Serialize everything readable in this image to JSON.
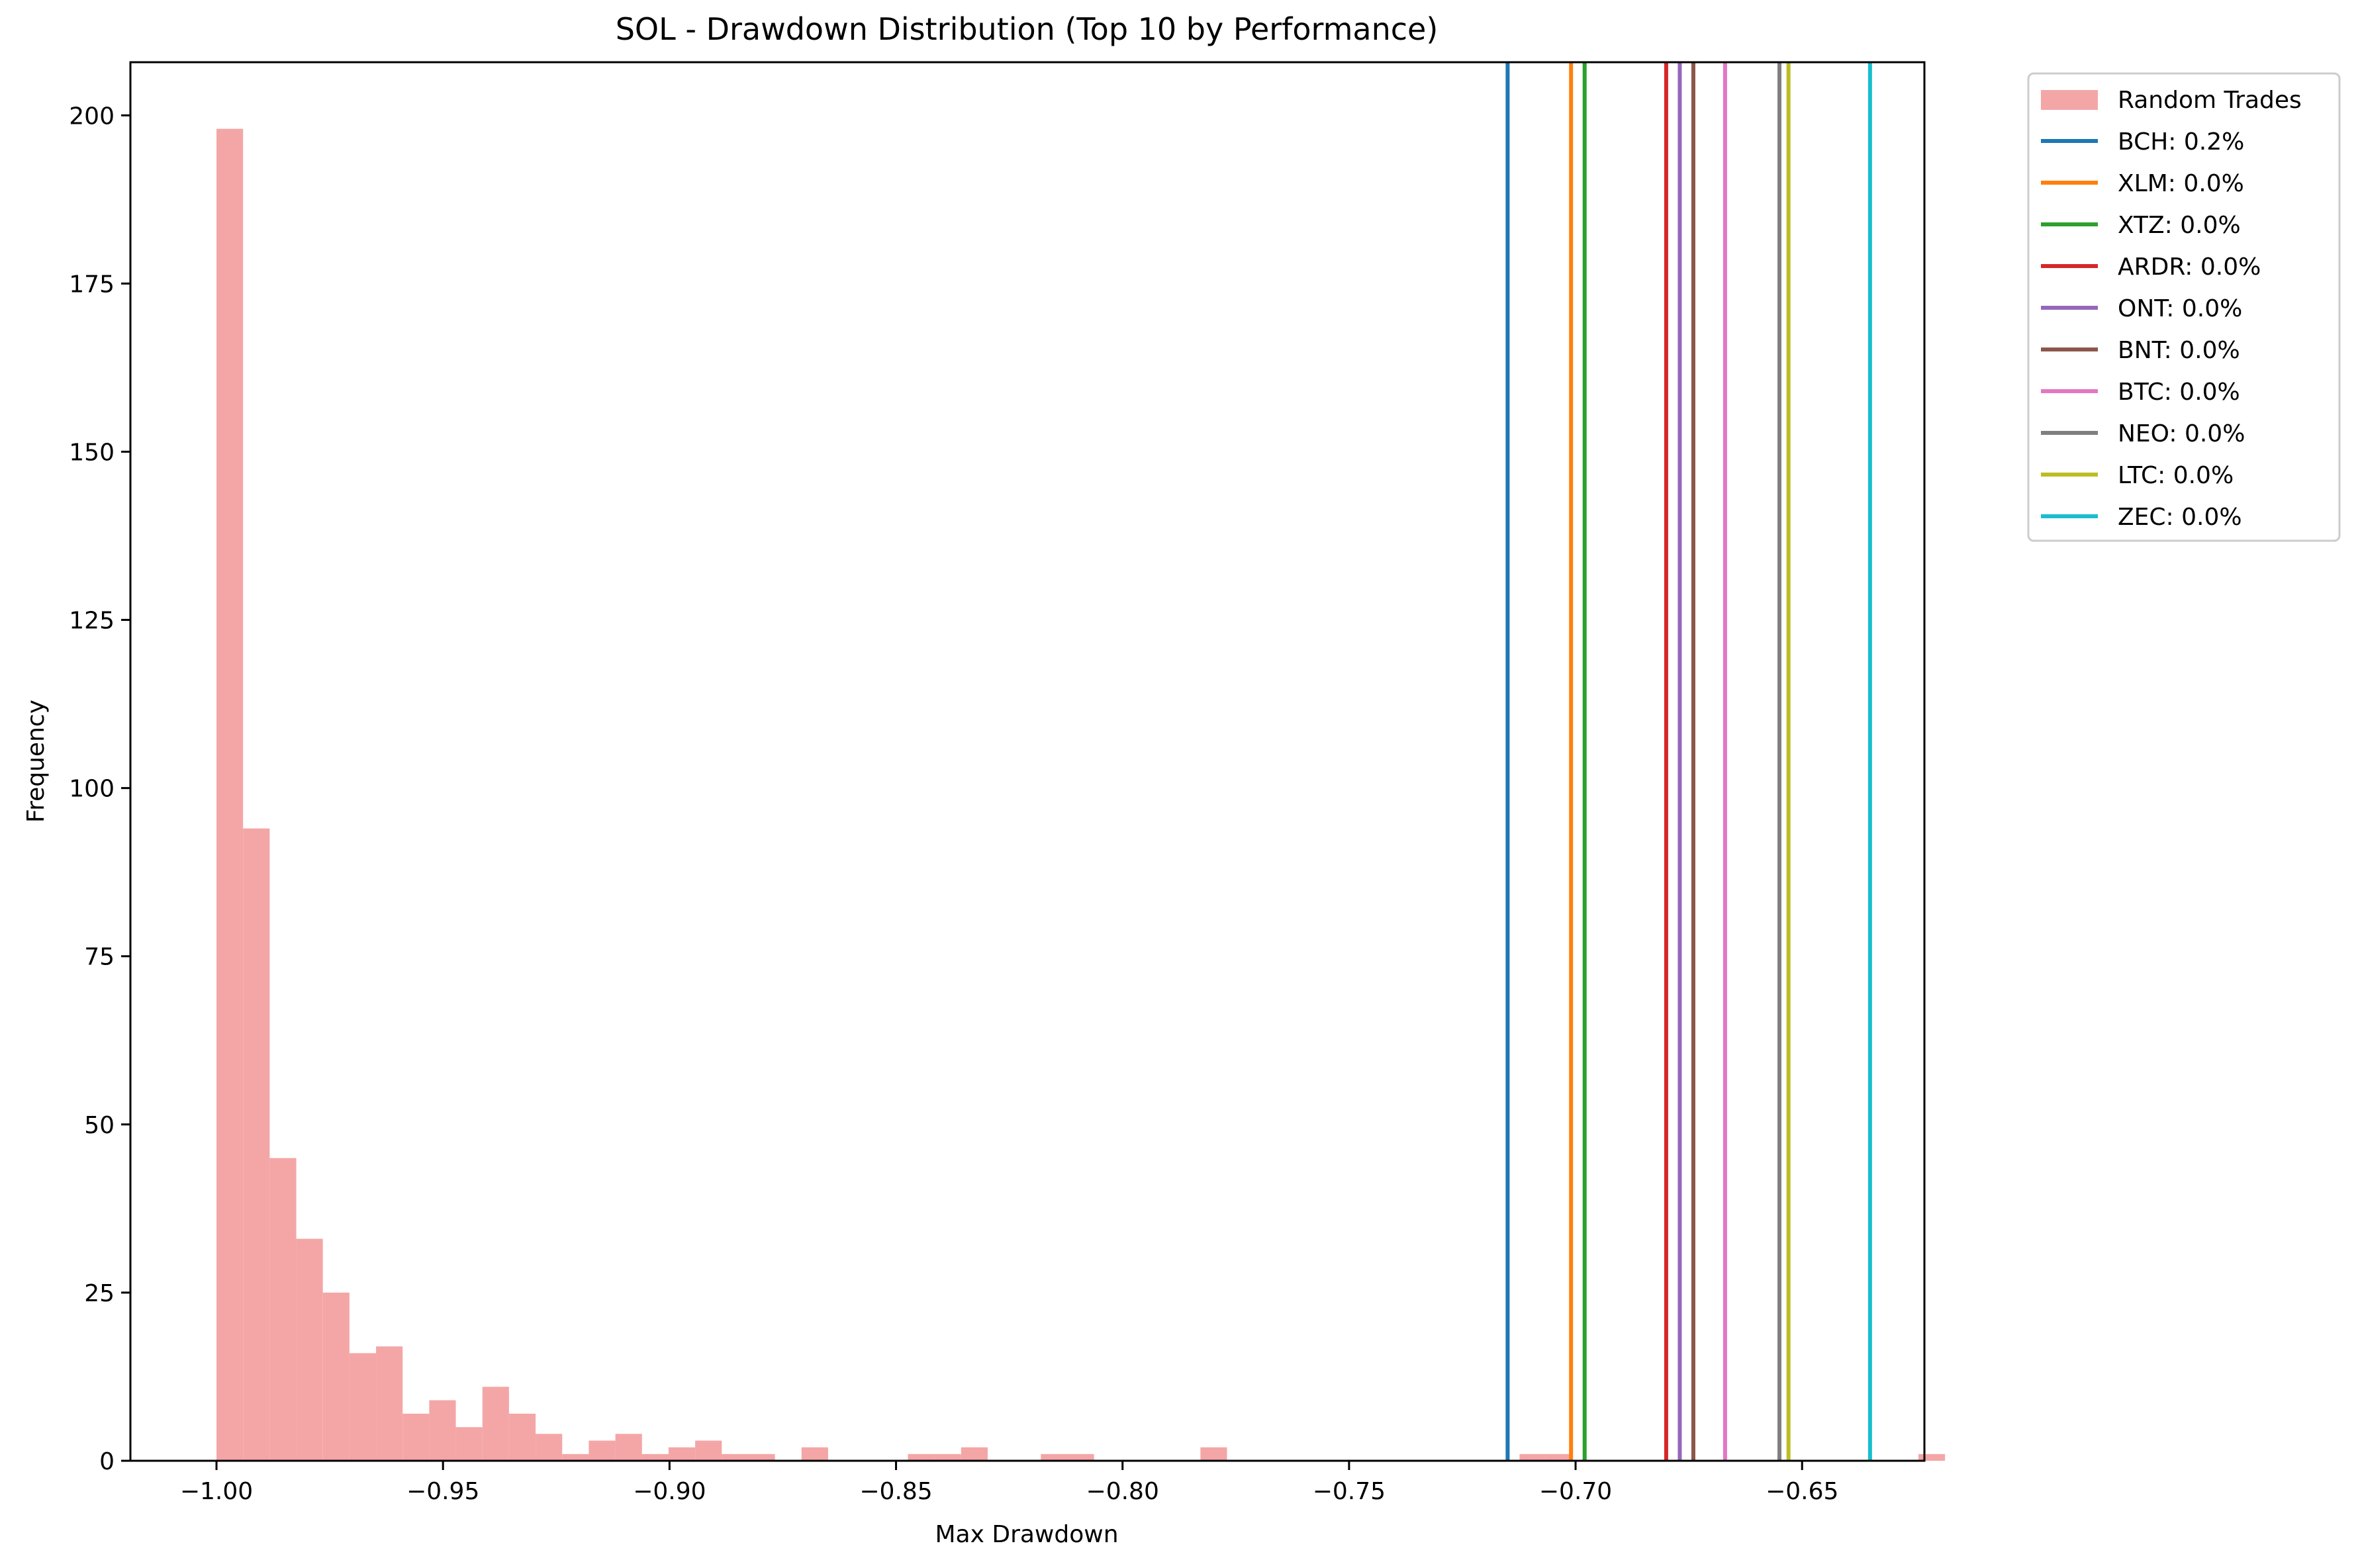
{
  "chart_data": {
    "type": "bar",
    "title": "SOL - Drawdown Distribution (Top 10 by Performance)",
    "xlabel": "Max Drawdown",
    "ylabel": "Frequency",
    "xlim": [
      -1.019,
      -0.623
    ],
    "ylim": [
      0,
      207.9
    ],
    "xticks": [
      -1.0,
      -0.95,
      -0.9,
      -0.85,
      -0.8,
      -0.75,
      -0.7,
      -0.65
    ],
    "xtick_labels": [
      "−1.00",
      "−0.95",
      "−0.90",
      "−0.85",
      "−0.80",
      "−0.75",
      "−0.70",
      "−0.65"
    ],
    "yticks": [
      0,
      25,
      50,
      75,
      100,
      125,
      150,
      175,
      200
    ],
    "ytick_labels": [
      "0",
      "25",
      "50",
      "75",
      "100",
      "125",
      "150",
      "175",
      "200"
    ],
    "grid": false,
    "legend_position": "outside-top-right",
    "histogram": {
      "name": "Random Trades",
      "color": "#f4a6a6",
      "bin_start": -1.0,
      "bin_width": 0.00587,
      "counts": [
        198,
        94,
        45,
        33,
        25,
        16,
        17,
        7,
        9,
        5,
        11,
        7,
        4,
        1,
        3,
        4,
        1,
        2,
        3,
        1,
        1,
        0,
        2,
        0,
        0,
        0,
        1,
        1,
        2,
        0,
        0,
        1,
        1,
        0,
        0,
        0,
        0,
        2,
        0,
        0,
        0,
        0,
        0,
        0,
        0,
        0,
        0,
        0,
        0,
        1,
        1,
        0,
        0,
        0,
        0,
        0,
        0,
        0,
        0,
        0,
        0,
        0,
        0,
        0,
        1
      ]
    },
    "vlines": [
      {
        "name": "BCH: 0.2%",
        "x": -0.715,
        "color": "#1f77b4"
      },
      {
        "name": "XLM: 0.0%",
        "x": -0.701,
        "color": "#ff7f0e"
      },
      {
        "name": "XTZ: 0.0%",
        "x": -0.698,
        "color": "#2ca02c"
      },
      {
        "name": "ARDR: 0.0%",
        "x": -0.68,
        "color": "#d62728"
      },
      {
        "name": "ONT: 0.0%",
        "x": -0.677,
        "color": "#9467bd"
      },
      {
        "name": "BNT: 0.0%",
        "x": -0.674,
        "color": "#8c564b"
      },
      {
        "name": "BTC: 0.0%",
        "x": -0.667,
        "color": "#e377c2"
      },
      {
        "name": "NEO: 0.0%",
        "x": -0.655,
        "color": "#7f7f7f"
      },
      {
        "name": "LTC: 0.0%",
        "x": -0.653,
        "color": "#bcbd22"
      },
      {
        "name": "ZEC: 0.0%",
        "x": -0.635,
        "color": "#17becf"
      }
    ]
  }
}
